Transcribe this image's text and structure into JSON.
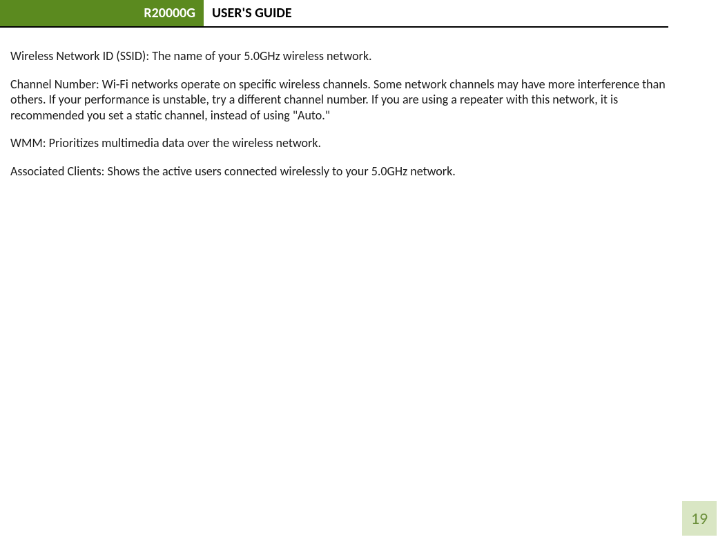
{
  "header": {
    "model": "R20000G",
    "title": "USER'S GUIDE",
    "badge_bg": "#5b8a1f",
    "badge_fg": "#ffffff",
    "underline_color": "#000000"
  },
  "paragraphs": {
    "p1": "Wireless Network ID (SSID): The name of your 5.0GHz wireless network.",
    "p2": "Channel Number:  Wi-Fi networks operate on specific wireless channels. Some network channels may have more interference than others. If your performance is unstable, try a different channel number. If you are using a repeater with this network, it is recommended you set a static channel, instead of using \"Auto.\"",
    "p3": "WMM: Prioritizes multimedia data over the wireless network.",
    "p4": "Associated Clients: Shows the active users connected wirelessly to your 5.0GHz network."
  },
  "page": {
    "number": "19",
    "box_bg": "#d9e6c4",
    "box_fg": "#6b8f3a"
  },
  "typography": {
    "body_fontsize": 18,
    "header_fontsize": 20,
    "pagenum_fontsize": 24,
    "text_color": "#1a1a1a"
  }
}
